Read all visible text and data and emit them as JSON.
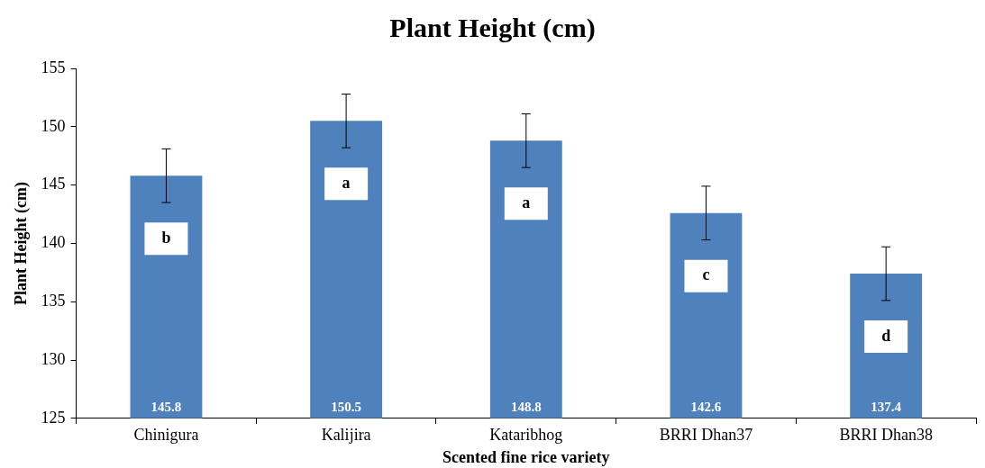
{
  "chart_data": {
    "type": "bar",
    "title": "Plant Height (cm)",
    "xlabel": "Scented fine rice variety",
    "ylabel": "Plant Height (cm)",
    "categories": [
      "Chinigura",
      "Kalijira",
      "Kataribhog",
      "BRRI Dhan37",
      "BRRI Dhan38"
    ],
    "values": [
      145.8,
      150.5,
      148.8,
      142.6,
      137.4
    ],
    "errors": [
      2.3,
      2.3,
      2.3,
      2.3,
      2.3
    ],
    "color": "#4f81bd",
    "ylim": [
      125,
      155
    ],
    "yticks": [
      125,
      130,
      135,
      140,
      145,
      150,
      155
    ],
    "grid": false,
    "legend": false,
    "data_labels": true,
    "annotations": [
      "b",
      "a",
      "a",
      "c",
      "d"
    ]
  }
}
